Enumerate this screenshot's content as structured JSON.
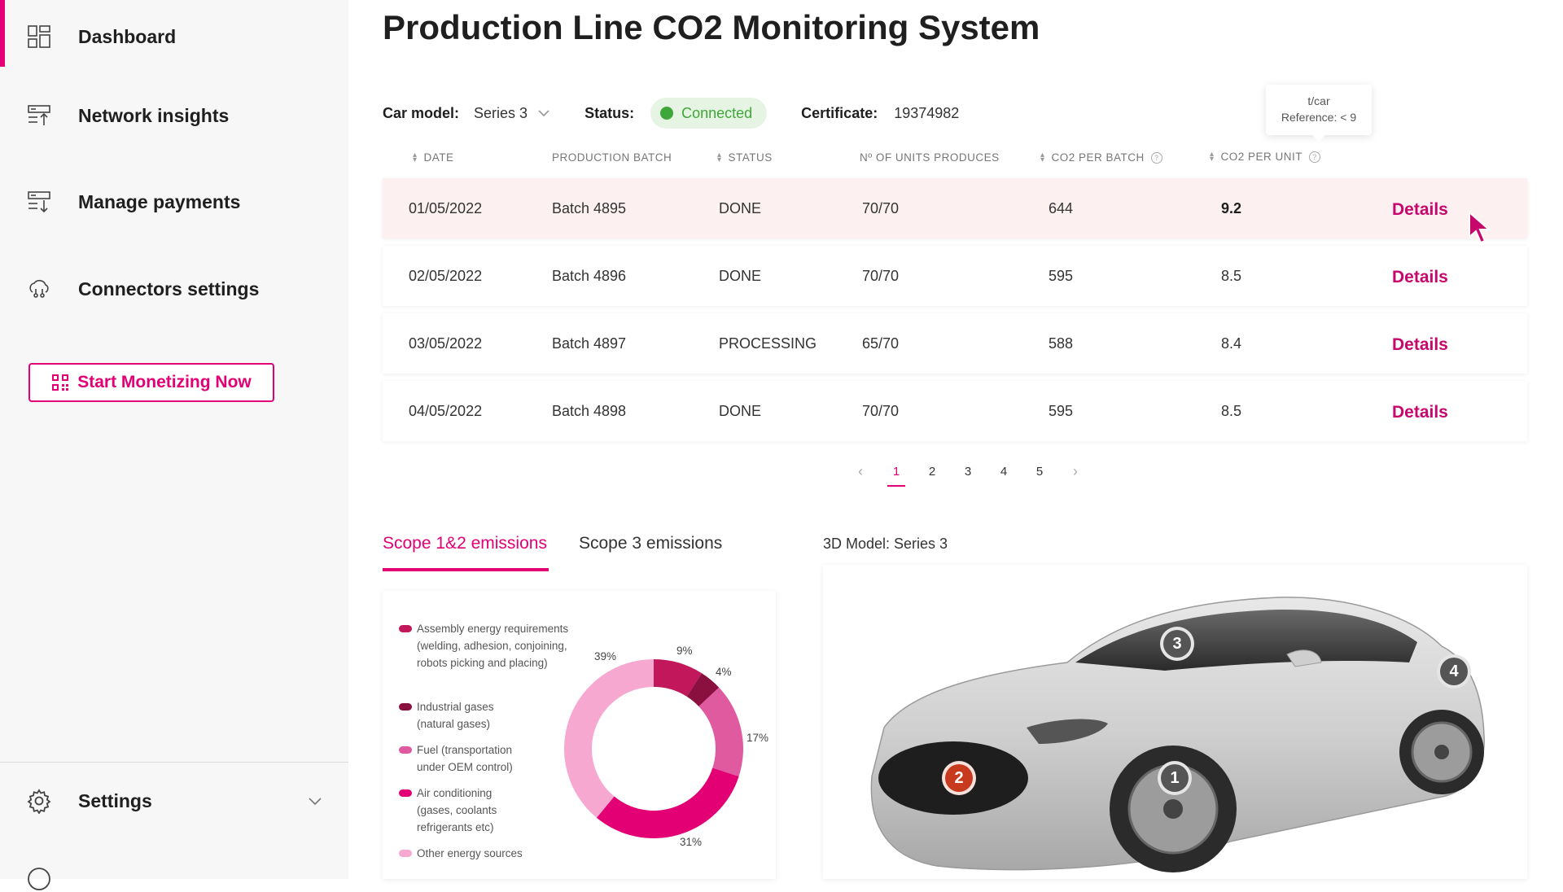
{
  "sidebar": {
    "items": [
      {
        "label": "Dashboard",
        "icon": "dashboard-icon"
      },
      {
        "label": "Network insights",
        "icon": "network-icon"
      },
      {
        "label": "Manage payments",
        "icon": "payments-icon"
      },
      {
        "label": "Connectors settings",
        "icon": "cloud-connector-icon"
      }
    ],
    "cta_label": "Start Monetizing Now",
    "settings_label": "Settings",
    "accent": "#e20074"
  },
  "page": {
    "title": "Production Line CO2 Monitoring System"
  },
  "meta": {
    "car_model_label": "Car model:",
    "car_model_value": "Series 3",
    "status_label": "Status:",
    "status_value": "Connected",
    "certificate_label": "Certificate:",
    "certificate_value": "19374982"
  },
  "tooltip": {
    "line1": "t/car",
    "line2": "Reference: < 9"
  },
  "table": {
    "headers": [
      "DATE",
      "PRODUCTION BATCH",
      "STATUS",
      "Nº OF UNITS PRODUCES",
      "CO2 PER BATCH",
      "CO2 PER UNIT"
    ],
    "details_label": "Details",
    "rows": [
      {
        "date": "01/05/2022",
        "batch": "Batch 4895",
        "status": "DONE",
        "units": "70/70",
        "co2_batch": "644",
        "co2_unit": "9.2"
      },
      {
        "date": "02/05/2022",
        "batch": "Batch 4896",
        "status": "DONE",
        "units": "70/70",
        "co2_batch": "595",
        "co2_unit": "8.5"
      },
      {
        "date": "03/05/2022",
        "batch": "Batch 4897",
        "status": "PROCESSING",
        "units": "65/70",
        "co2_batch": "588",
        "co2_unit": "8.4"
      },
      {
        "date": "04/05/2022",
        "batch": "Batch 4898",
        "status": "DONE",
        "units": "70/70",
        "co2_batch": "595",
        "co2_unit": "8.5"
      }
    ]
  },
  "pagination": {
    "pages": [
      "1",
      "2",
      "3",
      "4",
      "5"
    ],
    "current": "1"
  },
  "tabs": [
    {
      "label": "Scope 1&2 emissions",
      "active": true
    },
    {
      "label": "Scope 3 emissions",
      "active": false
    }
  ],
  "emissions_chart": {
    "legend": [
      {
        "label": "Assembly energy requirements (welding, adhesion, conjoining, robots picking and placing)",
        "color": "#c2185b"
      },
      {
        "label": "Industrial gases (natural gases)",
        "color": "#8a1040"
      },
      {
        "label": "Fuel (transportation under OEM control)",
        "color": "#e05aa0"
      },
      {
        "label": "Air conditioning (gases, coolants refrigerants etc)",
        "color": "#e20074"
      },
      {
        "label": "Other energy sources",
        "color": "#f7a8d0"
      }
    ]
  },
  "chart_data": {
    "type": "pie",
    "segments": [
      {
        "value": 9,
        "label": "9%",
        "color": "#c2185b"
      },
      {
        "value": 4,
        "label": "4%",
        "color": "#8a1040"
      },
      {
        "value": 17,
        "label": "17%",
        "color": "#e05aa0"
      },
      {
        "value": 31,
        "label": "31%",
        "color": "#e20074"
      },
      {
        "value": 39,
        "label": "39%",
        "color": "#f7a8d0"
      }
    ]
  },
  "model": {
    "title": "3D Model: Series 3",
    "markers": [
      "1",
      "2",
      "3",
      "4"
    ]
  }
}
